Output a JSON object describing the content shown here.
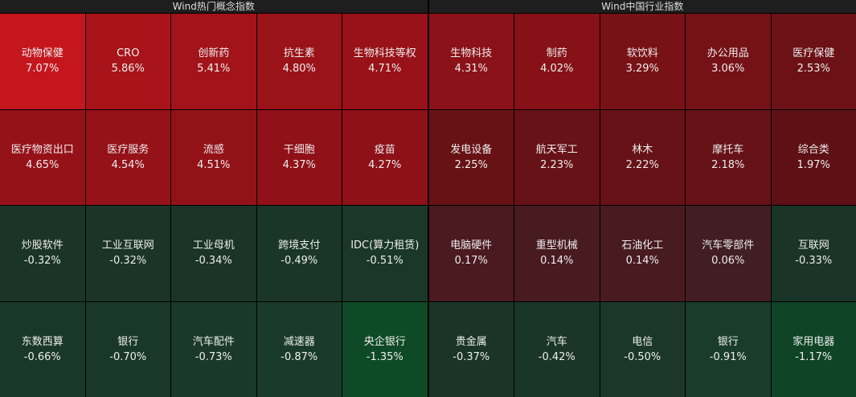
{
  "panels": [
    {
      "title": "Wind热门概念指数",
      "tiles": [
        {
          "name": "动物保健",
          "change": "7.07%",
          "color": "#c5161e"
        },
        {
          "name": "CRO",
          "change": "5.86%",
          "color": "#a8141a"
        },
        {
          "name": "创新药",
          "change": "5.41%",
          "color": "#a2141a"
        },
        {
          "name": "抗生素",
          "change": "4.80%",
          "color": "#9a1319"
        },
        {
          "name": "生物科技等权",
          "change": "4.71%",
          "color": "#981218"
        },
        {
          "name": "医疗物资出口",
          "change": "4.65%",
          "color": "#961219"
        },
        {
          "name": "医疗服务",
          "change": "4.54%",
          "color": "#941218"
        },
        {
          "name": "流感",
          "change": "4.51%",
          "color": "#931218"
        },
        {
          "name": "干细胞",
          "change": "4.37%",
          "color": "#901117"
        },
        {
          "name": "疫苗",
          "change": "4.27%",
          "color": "#8d1117"
        },
        {
          "name": "炒股软件",
          "change": "-0.32%",
          "color": "#1a3428"
        },
        {
          "name": "工业互联网",
          "change": "-0.32%",
          "color": "#1a3428"
        },
        {
          "name": "工业母机",
          "change": "-0.34%",
          "color": "#1a3428"
        },
        {
          "name": "跨境支付",
          "change": "-0.49%",
          "color": "#1a3629"
        },
        {
          "name": "IDC(算力租赁)",
          "change": "-0.51%",
          "color": "#1a372a"
        },
        {
          "name": "东数西算",
          "change": "-0.66%",
          "color": "#1a382a"
        },
        {
          "name": "银行",
          "change": "-0.70%",
          "color": "#1a382a"
        },
        {
          "name": "汽车配件",
          "change": "-0.73%",
          "color": "#1a392a"
        },
        {
          "name": "减速器",
          "change": "-0.87%",
          "color": "#1a3b2b"
        },
        {
          "name": "央企银行",
          "change": "-1.35%",
          "color": "#0e4a25"
        }
      ]
    },
    {
      "title": "Wind中国行业指数",
      "tiles": [
        {
          "name": "生物科技",
          "change": "4.31%",
          "color": "#8b1218"
        },
        {
          "name": "制药",
          "change": "4.02%",
          "color": "#861117"
        },
        {
          "name": "软饮料",
          "change": "3.29%",
          "color": "#791217"
        },
        {
          "name": "办公用品",
          "change": "3.06%",
          "color": "#751217"
        },
        {
          "name": "医疗保健",
          "change": "2.53%",
          "color": "#6c1216"
        },
        {
          "name": "发电设备",
          "change": "2.25%",
          "color": "#681216"
        },
        {
          "name": "航天军工",
          "change": "2.23%",
          "color": "#671216"
        },
        {
          "name": "林木",
          "change": "2.22%",
          "color": "#671216"
        },
        {
          "name": "摩托车",
          "change": "2.18%",
          "color": "#661216"
        },
        {
          "name": "综合类",
          "change": "1.97%",
          "color": "#5e1015"
        },
        {
          "name": "电脑硬件",
          "change": "0.17%",
          "color": "#4a1a20"
        },
        {
          "name": "重型机械",
          "change": "0.14%",
          "color": "#481b21"
        },
        {
          "name": "石油化工",
          "change": "0.14%",
          "color": "#481b21"
        },
        {
          "name": "汽车零部件",
          "change": "0.06%",
          "color": "#421e23"
        },
        {
          "name": "互联网",
          "change": "-0.33%",
          "color": "#1a3428"
        },
        {
          "name": "贵金属",
          "change": "-0.37%",
          "color": "#1a3428"
        },
        {
          "name": "汽车",
          "change": "-0.42%",
          "color": "#1a3529"
        },
        {
          "name": "电信",
          "change": "-0.50%",
          "color": "#1a3729"
        },
        {
          "name": "银行",
          "change": "-0.91%",
          "color": "#1a3c2b"
        },
        {
          "name": "家用电器",
          "change": "-1.17%",
          "color": "#0f4526"
        }
      ]
    }
  ]
}
